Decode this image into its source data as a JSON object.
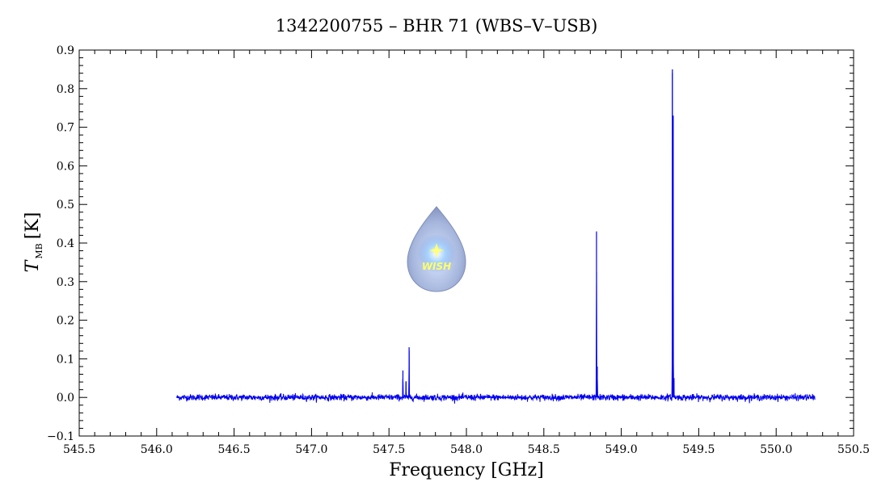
{
  "chart_data": {
    "type": "line",
    "title": "1342200755 – BHR 71 (WBS–V–USB)",
    "xlabel": "Frequency [GHz]",
    "ylabel_main": "T",
    "ylabel_sub": "MB",
    "ylabel_unit": "[K]",
    "xlim": [
      545.5,
      550.5
    ],
    "ylim": [
      -0.1,
      0.9
    ],
    "x_ticks": [
      545.5,
      546.0,
      546.5,
      547.0,
      547.5,
      548.0,
      548.5,
      549.0,
      549.5,
      550.0,
      550.5
    ],
    "x_tick_labels": [
      "545.5",
      "546.0",
      "546.5",
      "547.0",
      "547.5",
      "548.0",
      "548.5",
      "549.0",
      "549.5",
      "550.0",
      "550.5"
    ],
    "y_ticks": [
      -0.1,
      0.0,
      0.1,
      0.2,
      0.3,
      0.4,
      0.5,
      0.6,
      0.7,
      0.8,
      0.9
    ],
    "y_tick_labels": [
      "−0.1",
      "0.0",
      "0.1",
      "0.2",
      "0.3",
      "0.4",
      "0.5",
      "0.6",
      "0.7",
      "0.8",
      "0.9"
    ],
    "grid": false,
    "series": [
      {
        "color": "#0000ee",
        "range": [
          546.13,
          550.25
        ],
        "noise_rms": 0.004,
        "baseline": 0.0,
        "peaks": [
          {
            "x": 547.59,
            "y": 0.07
          },
          {
            "x": 547.61,
            "y": 0.04
          },
          {
            "x": 547.63,
            "y": 0.13
          },
          {
            "x": 548.84,
            "y": 0.43
          },
          {
            "x": 548.845,
            "y": 0.08
          },
          {
            "x": 549.33,
            "y": 0.85
          },
          {
            "x": 549.335,
            "y": 0.73
          },
          {
            "x": 549.34,
            "y": 0.05
          }
        ]
      }
    ]
  },
  "logo": {
    "text": "WISH",
    "colors": {
      "drop": "#a9b8e0",
      "core": "#c8e6ff",
      "star": "#ffff66"
    }
  }
}
